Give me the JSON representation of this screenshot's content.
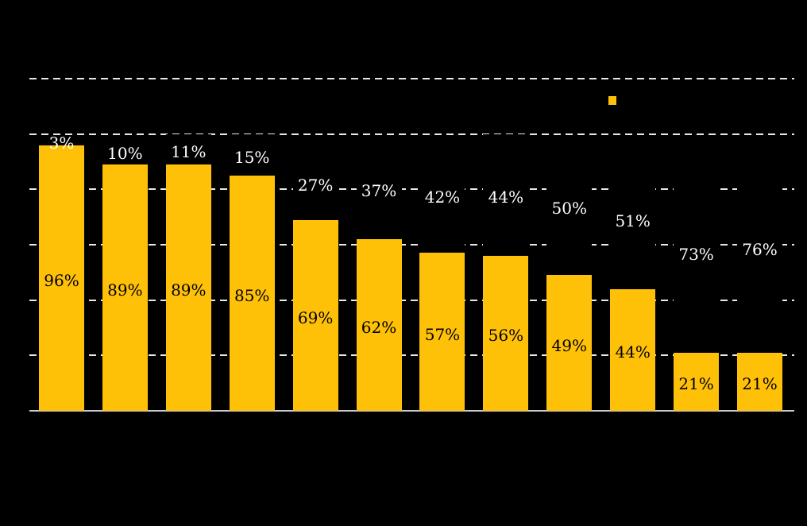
{
  "chart_data": {
    "type": "bar",
    "stacked": true,
    "orientation": "vertical",
    "n_bars": 12,
    "categories": [
      "",
      "",
      "",
      "",
      "",
      "",
      "",
      "",
      "",
      "",
      "",
      ""
    ],
    "series": [
      {
        "name": "yellow-bottom-segment",
        "color": "#FFC107",
        "values": [
          96,
          89,
          89,
          85,
          69,
          62,
          57,
          56,
          49,
          44,
          21,
          21
        ],
        "label_suffix": "%",
        "label_color": "#000000",
        "label_placement": "center-of-segment"
      },
      {
        "name": "hidden-black-top-segment",
        "color": "#000000",
        "values": [
          3,
          10,
          11,
          15,
          27,
          37,
          42,
          44,
          50,
          51,
          73,
          76
        ],
        "label_suffix": "%",
        "label_color": "#FFFFFF",
        "label_placement": "center-of-segment"
      }
    ],
    "ylim": [
      0,
      120
    ],
    "y_gridlines": [
      20,
      40,
      60,
      80,
      100,
      120
    ],
    "grid_style": "dashed",
    "legend": {
      "position": "top-right",
      "visible_swatch_color": "#FFC107"
    }
  },
  "colors": {
    "background": "#000000",
    "bar": "#FFC107",
    "gridline": "#E8E8E8",
    "axis_line": "#CCCCCC",
    "label_inside": "#000000",
    "label_outside": "#FFFFFF"
  }
}
